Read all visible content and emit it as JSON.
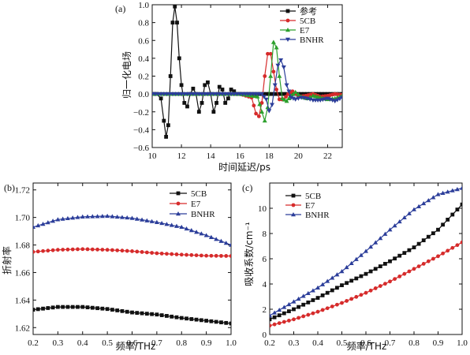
{
  "chart_data": [
    {
      "panel": "(a)",
      "type": "line",
      "title": "",
      "xlabel": "时间延迟/ps",
      "ylabel": "归一化电场",
      "xlim": [
        10,
        23
      ],
      "ylim": [
        -0.6,
        1.0
      ],
      "x_ticks": [
        10,
        12,
        14,
        16,
        18,
        20,
        22
      ],
      "y_ticks": [
        -0.6,
        -0.4,
        -0.2,
        0.0,
        0.2,
        0.4,
        0.6,
        0.8,
        1.0
      ],
      "y_tick_labels": [
        "−0.6",
        "−0.4",
        "−0.2",
        "0.0",
        "0.2",
        "0.4",
        "0.6",
        "0.8",
        "1.0"
      ],
      "grid": false,
      "legend_position": "top-right",
      "series": [
        {
          "name": "参考",
          "color": "#111111",
          "marker": "square",
          "x": [
            10.0,
            10.3,
            10.6,
            10.8,
            10.95,
            11.1,
            11.25,
            11.4,
            11.55,
            11.7,
            11.85,
            12.0,
            12.2,
            12.4,
            12.6,
            12.8,
            13.0,
            13.2,
            13.4,
            13.6,
            13.8,
            14.0,
            14.2,
            14.4,
            14.6,
            14.8,
            15.0,
            15.2,
            15.4,
            15.6,
            15.8,
            16.2,
            17.0,
            18.0,
            19.0,
            20.0,
            21.0,
            22.0,
            23.0
          ],
          "y": [
            0.0,
            0.0,
            -0.05,
            -0.3,
            -0.48,
            -0.35,
            0.2,
            0.8,
            0.98,
            0.8,
            0.4,
            0.1,
            -0.1,
            -0.14,
            0.0,
            0.06,
            0.0,
            -0.2,
            -0.1,
            0.1,
            0.13,
            0.0,
            -0.2,
            -0.1,
            0.08,
            0.05,
            -0.1,
            -0.05,
            0.05,
            0.03,
            0.0,
            0.0,
            0.0,
            0.0,
            0.0,
            0.0,
            0.0,
            0.0,
            0.0
          ]
        },
        {
          "name": "5CB",
          "color": "#d62b2b",
          "marker": "circle",
          "x": [
            10.0,
            12.0,
            14.0,
            16.0,
            16.8,
            17.1,
            17.3,
            17.5,
            17.7,
            17.9,
            18.1,
            18.3,
            18.5,
            18.7,
            19.0,
            19.3,
            19.6,
            20.0,
            20.5,
            21.0,
            21.5,
            22.0,
            22.5,
            23.0
          ],
          "y": [
            0.0,
            0.0,
            0.0,
            0.0,
            -0.04,
            -0.22,
            -0.25,
            -0.1,
            0.2,
            0.45,
            0.45,
            0.25,
            0.05,
            -0.06,
            -0.06,
            0.0,
            0.03,
            -0.03,
            -0.02,
            0.0,
            -0.03,
            -0.02,
            0.0,
            -0.01
          ]
        },
        {
          "name": "E7",
          "color": "#2ca02c",
          "marker": "triangle",
          "x": [
            10.0,
            12.0,
            14.0,
            16.0,
            17.2,
            17.5,
            17.7,
            17.9,
            18.1,
            18.3,
            18.5,
            18.7,
            18.9,
            19.2,
            19.5,
            19.8,
            20.2,
            20.6,
            21.0,
            21.5,
            22.0,
            22.5,
            23.0
          ],
          "y": [
            0.0,
            0.0,
            0.0,
            0.0,
            -0.03,
            -0.2,
            -0.3,
            -0.15,
            0.2,
            0.58,
            0.52,
            0.2,
            -0.05,
            -0.08,
            -0.02,
            0.02,
            -0.03,
            -0.05,
            -0.02,
            -0.04,
            -0.06,
            -0.05,
            -0.02
          ]
        },
        {
          "name": "BNHR",
          "color": "#2c3e9a",
          "marker": "triangle-down",
          "x": [
            10.0,
            12.0,
            14.0,
            16.0,
            17.5,
            17.8,
            18.0,
            18.2,
            18.4,
            18.6,
            18.8,
            19.0,
            19.2,
            19.5,
            19.8,
            20.2,
            20.6,
            21.0,
            21.5,
            22.0,
            22.5,
            23.0
          ],
          "y": [
            0.0,
            0.0,
            0.0,
            0.0,
            0.0,
            -0.06,
            -0.19,
            -0.12,
            0.1,
            0.32,
            0.38,
            0.3,
            0.1,
            -0.04,
            -0.06,
            -0.04,
            -0.05,
            -0.07,
            -0.07,
            -0.05,
            -0.08,
            -0.04
          ]
        }
      ]
    },
    {
      "panel": "(b)",
      "type": "line",
      "title": "",
      "xlabel": "频率/THz",
      "ylabel": "折射率",
      "xlim": [
        0.2,
        1.0
      ],
      "ylim": [
        1.615,
        1.725
      ],
      "x_ticks": [
        0.2,
        0.3,
        0.4,
        0.5,
        0.6,
        0.7,
        0.8,
        0.9,
        1.0
      ],
      "x_tick_labels": [
        "0.2",
        "0.3",
        "0.4",
        "0.5",
        "0.6",
        "0.7",
        "0.8",
        "0.9",
        "1.0"
      ],
      "y_ticks": [
        1.62,
        1.64,
        1.66,
        1.68,
        1.7,
        1.72
      ],
      "y_tick_labels": [
        "1.62",
        "1.64",
        "1.66",
        "1.68",
        "1.70",
        "1.72"
      ],
      "grid": false,
      "legend_position": "top-right",
      "series": [
        {
          "name": "5CB",
          "color": "#111111",
          "marker": "square",
          "x": [
            0.2,
            0.3,
            0.4,
            0.5,
            0.6,
            0.7,
            0.8,
            0.9,
            1.0
          ],
          "y": [
            1.633,
            1.635,
            1.635,
            1.6335,
            1.631,
            1.6295,
            1.627,
            1.625,
            1.623
          ]
        },
        {
          "name": "E7",
          "color": "#d62b2b",
          "marker": "circle",
          "x": [
            0.2,
            0.3,
            0.4,
            0.5,
            0.6,
            0.7,
            0.8,
            0.9,
            1.0
          ],
          "y": [
            1.675,
            1.6765,
            1.677,
            1.6765,
            1.6755,
            1.674,
            1.673,
            1.6722,
            1.672
          ]
        },
        {
          "name": "BNHR",
          "color": "#2c3e9a",
          "marker": "triangle",
          "x": [
            0.2,
            0.3,
            0.4,
            0.5,
            0.6,
            0.7,
            0.8,
            0.9,
            1.0
          ],
          "y": [
            1.693,
            1.6985,
            1.7005,
            1.701,
            1.6995,
            1.6965,
            1.693,
            1.687,
            1.68
          ]
        }
      ]
    },
    {
      "panel": "(c)",
      "type": "line",
      "title": "",
      "xlabel": "频率/THz",
      "ylabel": "吸收系数/cm⁻¹",
      "xlim": [
        0.2,
        1.0
      ],
      "ylim": [
        0,
        12
      ],
      "x_ticks": [
        0.2,
        0.3,
        0.4,
        0.5,
        0.6,
        0.7,
        0.8,
        0.9,
        1.0
      ],
      "x_tick_labels": [
        "0.2",
        "0.3",
        "0.4",
        "0.5",
        "0.6",
        "0.7",
        "0.8",
        "0.9",
        "1.0"
      ],
      "y_ticks": [
        0,
        2,
        4,
        6,
        8,
        10
      ],
      "y_tick_labels": [
        "0",
        "2",
        "4",
        "6",
        "8",
        "10"
      ],
      "grid": false,
      "legend_position": "top-left",
      "series": [
        {
          "name": "5CB",
          "color": "#111111",
          "marker": "square",
          "x": [
            0.2,
            0.3,
            0.4,
            0.5,
            0.6,
            0.7,
            0.8,
            0.9,
            1.0
          ],
          "y": [
            1.2,
            2.0,
            2.9,
            3.9,
            4.8,
            5.8,
            6.9,
            8.3,
            10.3
          ]
        },
        {
          "name": "E7",
          "color": "#d62b2b",
          "marker": "circle",
          "x": [
            0.2,
            0.3,
            0.4,
            0.5,
            0.6,
            0.7,
            0.8,
            0.9,
            1.0
          ],
          "y": [
            0.7,
            1.2,
            1.8,
            2.5,
            3.3,
            4.2,
            5.2,
            6.2,
            7.3
          ]
        },
        {
          "name": "BNHR",
          "color": "#2c3e9a",
          "marker": "triangle",
          "x": [
            0.2,
            0.3,
            0.4,
            0.5,
            0.6,
            0.7,
            0.8,
            0.9,
            1.0
          ],
          "y": [
            1.5,
            2.6,
            3.7,
            5.0,
            6.6,
            8.3,
            9.9,
            11.1,
            11.6
          ]
        }
      ]
    }
  ]
}
